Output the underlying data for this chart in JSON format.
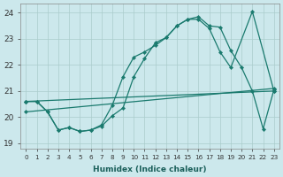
{
  "bg_color": "#cce8ec",
  "grid_color": "#aacccc",
  "line_color": "#1a7a6e",
  "xlim": [
    -0.5,
    23.5
  ],
  "ylim": [
    18.8,
    24.35
  ],
  "xticks": [
    0,
    1,
    2,
    3,
    4,
    5,
    6,
    7,
    8,
    9,
    10,
    11,
    12,
    13,
    14,
    15,
    16,
    17,
    18,
    19,
    20,
    21,
    22,
    23
  ],
  "yticks": [
    19,
    20,
    21,
    22,
    23,
    24
  ],
  "xlabel": "Humidex (Indice chaleur)",
  "series": [
    {
      "x": [
        0,
        1,
        2,
        3,
        4,
        5,
        6,
        7,
        8,
        9,
        10,
        11,
        12,
        13,
        14,
        15,
        16,
        17,
        18,
        19,
        21,
        23
      ],
      "y": [
        20.6,
        20.6,
        20.2,
        19.5,
        19.6,
        19.45,
        19.5,
        19.65,
        20.05,
        20.35,
        21.55,
        22.25,
        22.85,
        23.05,
        23.5,
        23.75,
        23.75,
        23.4,
        22.5,
        21.9,
        24.05,
        21.0
      ]
    },
    {
      "x": [
        0,
        1,
        2,
        3,
        4,
        5,
        6,
        7,
        8,
        9,
        10,
        11,
        12,
        13,
        14,
        15,
        16,
        17,
        18,
        19,
        20,
        21,
        22,
        23
      ],
      "y": [
        20.6,
        20.6,
        20.2,
        19.5,
        19.6,
        19.45,
        19.5,
        19.7,
        20.45,
        21.55,
        22.3,
        22.5,
        22.75,
        23.05,
        23.5,
        23.75,
        23.85,
        23.5,
        23.45,
        22.55,
        21.9,
        21.0,
        19.55,
        21.05
      ]
    },
    {
      "x": [
        0,
        23
      ],
      "y": [
        20.6,
        21.0
      ]
    },
    {
      "x": [
        0,
        23
      ],
      "y": [
        20.2,
        21.1
      ]
    }
  ]
}
